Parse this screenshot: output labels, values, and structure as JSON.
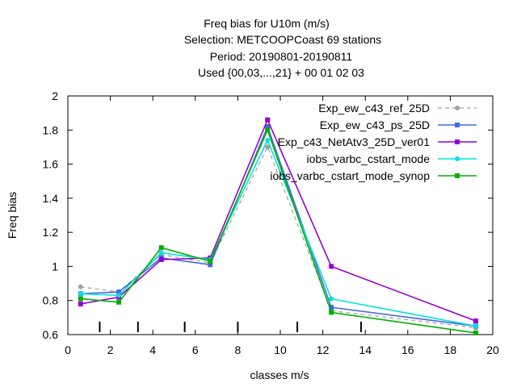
{
  "chart_data": {
    "type": "line",
    "title_lines": [
      "Freq bias  for U10m (m/s)",
      "Selection: METCOOPCoast     69 stations",
      "Period: 20190801-20190811",
      "Used {00,03,...,21} + 00 01 02 03"
    ],
    "xlabel": "classes m/s",
    "ylabel": "Freq bias",
    "xlim": [
      0,
      20
    ],
    "ylim": [
      0.6,
      2.0
    ],
    "xticks": [
      0,
      2,
      4,
      6,
      8,
      10,
      12,
      14,
      16,
      18,
      20
    ],
    "yticks": [
      0.6,
      0.8,
      1.0,
      1.2,
      1.4,
      1.6,
      1.8,
      2.0
    ],
    "xtick_labels": [
      "0",
      "2",
      "4",
      "6",
      "8",
      "10",
      "12",
      "14",
      "16",
      "18",
      "20"
    ],
    "ytick_labels": [
      "0.6",
      "0.8",
      "1",
      "1.2",
      "1.4",
      "1.6",
      "1.8",
      "2"
    ],
    "class_boundaries": [
      1.5,
      3.3,
      5.5,
      8.0,
      10.8,
      13.8
    ],
    "grid": false,
    "legend_position": "top-right",
    "x": [
      0.6,
      2.4,
      4.4,
      6.7,
      9.4,
      12.4,
      19.2
    ],
    "series": [
      {
        "name": "Exp_ew_c43_ref_25D",
        "color": "#a0a0a0",
        "dashed": true,
        "marker": "circle",
        "values": [
          0.88,
          0.85,
          1.07,
          1.02,
          1.7,
          0.74,
          0.64
        ]
      },
      {
        "name": "Exp_ew_c43_ps_25D",
        "color": "#4169e1",
        "dashed": false,
        "marker": "square",
        "values": [
          0.84,
          0.85,
          1.05,
          1.01,
          1.82,
          0.76,
          0.65
        ]
      },
      {
        "name": "Exp_c43_NetAtv3_25D_ver01",
        "color": "#9400d3",
        "dashed": false,
        "marker": "square",
        "values": [
          0.78,
          0.82,
          1.04,
          1.05,
          1.86,
          1.0,
          0.68
        ]
      },
      {
        "name": "iobs_varbc_cstart_mode",
        "color": "#00e0e0",
        "dashed": false,
        "marker": "circle",
        "values": [
          0.84,
          0.83,
          1.08,
          1.04,
          1.74,
          0.81,
          0.65
        ]
      },
      {
        "name": "iobs_varbc_cstart_mode_synop",
        "color": "#00b000",
        "dashed": false,
        "marker": "square",
        "values": [
          0.81,
          0.79,
          1.11,
          1.03,
          1.8,
          0.73,
          0.61
        ]
      }
    ]
  }
}
